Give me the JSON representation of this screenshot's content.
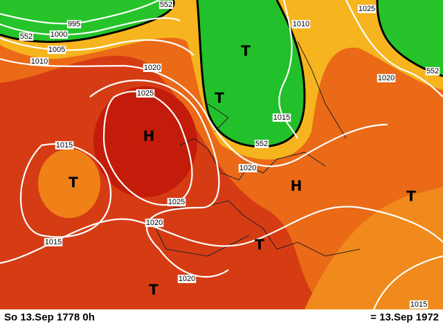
{
  "isobar_labels": [
    "995",
    "1000",
    "1005",
    "1010",
    "552",
    "552",
    "552",
    "552",
    "1020",
    "1025",
    "1015",
    "1025",
    "1020",
    "1015",
    "1020",
    "1020",
    "1015",
    "1010",
    "1025",
    "1020",
    "1015"
  ],
  "pressure_centers": [
    "T",
    "T",
    "H",
    "T",
    "H",
    "T",
    "T",
    "T"
  ],
  "footer": {
    "left": "So 13.Sep 1778  0h",
    "right": "= 13.Sep 1972"
  }
}
